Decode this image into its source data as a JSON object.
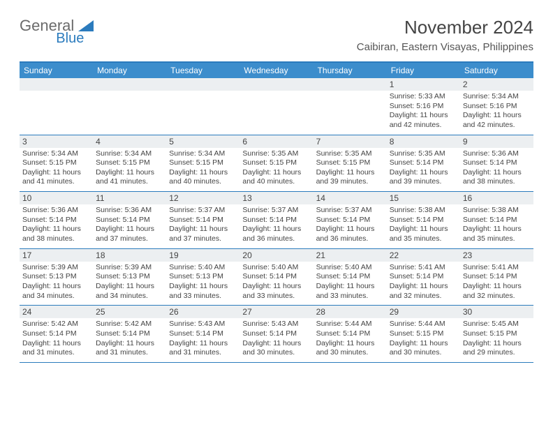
{
  "logo": {
    "part1": "General",
    "part2": "Blue"
  },
  "title": "November 2024",
  "location": "Caibiran, Eastern Visayas, Philippines",
  "colors": {
    "accent": "#3c8dcc",
    "band": "#eceff1",
    "border": "#2b7bbd",
    "text": "#444444"
  },
  "weekdays": [
    "Sunday",
    "Monday",
    "Tuesday",
    "Wednesday",
    "Thursday",
    "Friday",
    "Saturday"
  ],
  "weeks": [
    [
      {
        "day": "",
        "sunrise": "",
        "sunset": "",
        "daylight": ""
      },
      {
        "day": "",
        "sunrise": "",
        "sunset": "",
        "daylight": ""
      },
      {
        "day": "",
        "sunrise": "",
        "sunset": "",
        "daylight": ""
      },
      {
        "day": "",
        "sunrise": "",
        "sunset": "",
        "daylight": ""
      },
      {
        "day": "",
        "sunrise": "",
        "sunset": "",
        "daylight": ""
      },
      {
        "day": "1",
        "sunrise": "Sunrise: 5:33 AM",
        "sunset": "Sunset: 5:16 PM",
        "daylight": "Daylight: 11 hours and 42 minutes."
      },
      {
        "day": "2",
        "sunrise": "Sunrise: 5:34 AM",
        "sunset": "Sunset: 5:16 PM",
        "daylight": "Daylight: 11 hours and 42 minutes."
      }
    ],
    [
      {
        "day": "3",
        "sunrise": "Sunrise: 5:34 AM",
        "sunset": "Sunset: 5:15 PM",
        "daylight": "Daylight: 11 hours and 41 minutes."
      },
      {
        "day": "4",
        "sunrise": "Sunrise: 5:34 AM",
        "sunset": "Sunset: 5:15 PM",
        "daylight": "Daylight: 11 hours and 41 minutes."
      },
      {
        "day": "5",
        "sunrise": "Sunrise: 5:34 AM",
        "sunset": "Sunset: 5:15 PM",
        "daylight": "Daylight: 11 hours and 40 minutes."
      },
      {
        "day": "6",
        "sunrise": "Sunrise: 5:35 AM",
        "sunset": "Sunset: 5:15 PM",
        "daylight": "Daylight: 11 hours and 40 minutes."
      },
      {
        "day": "7",
        "sunrise": "Sunrise: 5:35 AM",
        "sunset": "Sunset: 5:15 PM",
        "daylight": "Daylight: 11 hours and 39 minutes."
      },
      {
        "day": "8",
        "sunrise": "Sunrise: 5:35 AM",
        "sunset": "Sunset: 5:14 PM",
        "daylight": "Daylight: 11 hours and 39 minutes."
      },
      {
        "day": "9",
        "sunrise": "Sunrise: 5:36 AM",
        "sunset": "Sunset: 5:14 PM",
        "daylight": "Daylight: 11 hours and 38 minutes."
      }
    ],
    [
      {
        "day": "10",
        "sunrise": "Sunrise: 5:36 AM",
        "sunset": "Sunset: 5:14 PM",
        "daylight": "Daylight: 11 hours and 38 minutes."
      },
      {
        "day": "11",
        "sunrise": "Sunrise: 5:36 AM",
        "sunset": "Sunset: 5:14 PM",
        "daylight": "Daylight: 11 hours and 37 minutes."
      },
      {
        "day": "12",
        "sunrise": "Sunrise: 5:37 AM",
        "sunset": "Sunset: 5:14 PM",
        "daylight": "Daylight: 11 hours and 37 minutes."
      },
      {
        "day": "13",
        "sunrise": "Sunrise: 5:37 AM",
        "sunset": "Sunset: 5:14 PM",
        "daylight": "Daylight: 11 hours and 36 minutes."
      },
      {
        "day": "14",
        "sunrise": "Sunrise: 5:37 AM",
        "sunset": "Sunset: 5:14 PM",
        "daylight": "Daylight: 11 hours and 36 minutes."
      },
      {
        "day": "15",
        "sunrise": "Sunrise: 5:38 AM",
        "sunset": "Sunset: 5:14 PM",
        "daylight": "Daylight: 11 hours and 35 minutes."
      },
      {
        "day": "16",
        "sunrise": "Sunrise: 5:38 AM",
        "sunset": "Sunset: 5:14 PM",
        "daylight": "Daylight: 11 hours and 35 minutes."
      }
    ],
    [
      {
        "day": "17",
        "sunrise": "Sunrise: 5:39 AM",
        "sunset": "Sunset: 5:13 PM",
        "daylight": "Daylight: 11 hours and 34 minutes."
      },
      {
        "day": "18",
        "sunrise": "Sunrise: 5:39 AM",
        "sunset": "Sunset: 5:13 PM",
        "daylight": "Daylight: 11 hours and 34 minutes."
      },
      {
        "day": "19",
        "sunrise": "Sunrise: 5:40 AM",
        "sunset": "Sunset: 5:13 PM",
        "daylight": "Daylight: 11 hours and 33 minutes."
      },
      {
        "day": "20",
        "sunrise": "Sunrise: 5:40 AM",
        "sunset": "Sunset: 5:14 PM",
        "daylight": "Daylight: 11 hours and 33 minutes."
      },
      {
        "day": "21",
        "sunrise": "Sunrise: 5:40 AM",
        "sunset": "Sunset: 5:14 PM",
        "daylight": "Daylight: 11 hours and 33 minutes."
      },
      {
        "day": "22",
        "sunrise": "Sunrise: 5:41 AM",
        "sunset": "Sunset: 5:14 PM",
        "daylight": "Daylight: 11 hours and 32 minutes."
      },
      {
        "day": "23",
        "sunrise": "Sunrise: 5:41 AM",
        "sunset": "Sunset: 5:14 PM",
        "daylight": "Daylight: 11 hours and 32 minutes."
      }
    ],
    [
      {
        "day": "24",
        "sunrise": "Sunrise: 5:42 AM",
        "sunset": "Sunset: 5:14 PM",
        "daylight": "Daylight: 11 hours and 31 minutes."
      },
      {
        "day": "25",
        "sunrise": "Sunrise: 5:42 AM",
        "sunset": "Sunset: 5:14 PM",
        "daylight": "Daylight: 11 hours and 31 minutes."
      },
      {
        "day": "26",
        "sunrise": "Sunrise: 5:43 AM",
        "sunset": "Sunset: 5:14 PM",
        "daylight": "Daylight: 11 hours and 31 minutes."
      },
      {
        "day": "27",
        "sunrise": "Sunrise: 5:43 AM",
        "sunset": "Sunset: 5:14 PM",
        "daylight": "Daylight: 11 hours and 30 minutes."
      },
      {
        "day": "28",
        "sunrise": "Sunrise: 5:44 AM",
        "sunset": "Sunset: 5:14 PM",
        "daylight": "Daylight: 11 hours and 30 minutes."
      },
      {
        "day": "29",
        "sunrise": "Sunrise: 5:44 AM",
        "sunset": "Sunset: 5:15 PM",
        "daylight": "Daylight: 11 hours and 30 minutes."
      },
      {
        "day": "30",
        "sunrise": "Sunrise: 5:45 AM",
        "sunset": "Sunset: 5:15 PM",
        "daylight": "Daylight: 11 hours and 29 minutes."
      }
    ]
  ]
}
